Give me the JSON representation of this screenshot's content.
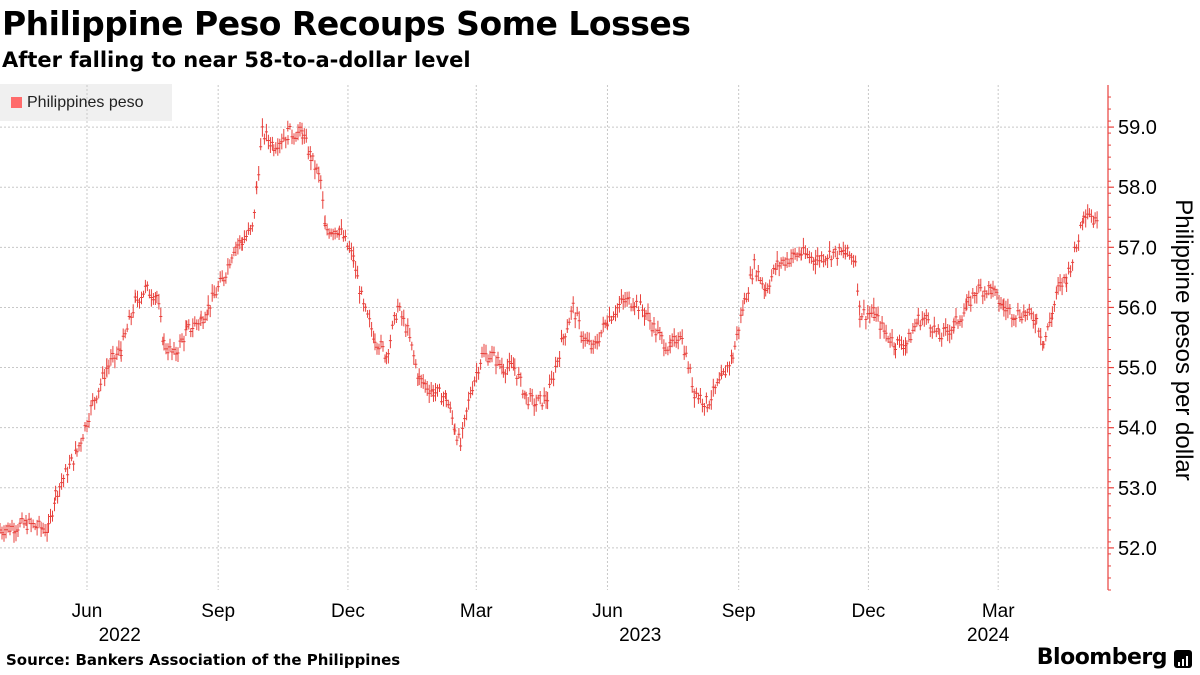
{
  "title": "Philippine Peso Recoups Some Losses",
  "subtitle": "After falling to near 58-to-a-dollar level",
  "source": "Source: Bankers Association of the Philippines",
  "brand": "Bloomberg",
  "brand_icon": "bloomberg-terminal-icon",
  "colors": {
    "series": "#e8413c",
    "legend": "#ff6b6b",
    "grid": "#c8c8c8",
    "axis": "#e8413c"
  },
  "chart_data": {
    "type": "line",
    "style": "ohlc-ticks",
    "ylabel": "Philippine pesos per dollar",
    "ylim": [
      51.3,
      59.7
    ],
    "yticks": [
      52.0,
      53.0,
      54.0,
      55.0,
      56.0,
      57.0,
      58.0,
      59.0
    ],
    "ytick_labels": [
      "52.0",
      "53.0",
      "54.0",
      "55.0",
      "56.0",
      "57.0",
      "58.0",
      "59.0"
    ],
    "y_axis_side": "right",
    "legend_position": "top-left",
    "grid": true,
    "x_start": "2022-04-01",
    "x_end": "2024-05-10",
    "x_month_ticks": [
      {
        "date": "2022-06-01",
        "label": "Jun"
      },
      {
        "date": "2022-09-01",
        "label": "Sep"
      },
      {
        "date": "2022-12-01",
        "label": "Dec"
      },
      {
        "date": "2023-03-01",
        "label": "Mar"
      },
      {
        "date": "2023-06-01",
        "label": "Jun"
      },
      {
        "date": "2023-09-01",
        "label": "Sep"
      },
      {
        "date": "2023-12-01",
        "label": "Dec"
      },
      {
        "date": "2024-03-01",
        "label": "Mar"
      }
    ],
    "x_year_labels": [
      {
        "date": "2022-07-15",
        "label": "2022"
      },
      {
        "date": "2023-07-15",
        "label": "2023"
      },
      {
        "date": "2024-03-15",
        "label": "2024"
      }
    ],
    "x_gridlines": [
      "2022-06-01",
      "2022-09-01",
      "2022-12-01",
      "2023-03-01",
      "2023-06-01",
      "2023-09-01",
      "2023-12-01",
      "2024-03-01"
    ],
    "series": [
      {
        "name": "Philippines peso",
        "points": [
          [
            "2022-04-01",
            52.3
          ],
          [
            "2022-04-20",
            52.4
          ],
          [
            "2022-05-05",
            52.3
          ],
          [
            "2022-05-10",
            52.9
          ],
          [
            "2022-05-25",
            53.6
          ],
          [
            "2022-06-05",
            54.4
          ],
          [
            "2022-06-15",
            55.0
          ],
          [
            "2022-06-25",
            55.3
          ],
          [
            "2022-07-05",
            56.1
          ],
          [
            "2022-07-12",
            56.3
          ],
          [
            "2022-07-20",
            56.2
          ],
          [
            "2022-07-25",
            55.4
          ],
          [
            "2022-08-01",
            55.2
          ],
          [
            "2022-08-10",
            55.6
          ],
          [
            "2022-08-20",
            55.8
          ],
          [
            "2022-08-25",
            56.0
          ],
          [
            "2022-09-05",
            56.5
          ],
          [
            "2022-09-12",
            57.0
          ],
          [
            "2022-09-18",
            57.1
          ],
          [
            "2022-09-25",
            57.3
          ],
          [
            "2022-09-28",
            58.0
          ],
          [
            "2022-10-02",
            58.9
          ],
          [
            "2022-10-10",
            58.7
          ],
          [
            "2022-10-20",
            58.9
          ],
          [
            "2022-10-30",
            58.9
          ],
          [
            "2022-11-05",
            58.5
          ],
          [
            "2022-11-12",
            58.1
          ],
          [
            "2022-11-15",
            57.3
          ],
          [
            "2022-11-25",
            57.3
          ],
          [
            "2022-12-05",
            56.8
          ],
          [
            "2022-12-12",
            56.0
          ],
          [
            "2022-12-20",
            55.5
          ],
          [
            "2022-12-28",
            55.2
          ],
          [
            "2023-01-05",
            56.0
          ],
          [
            "2023-01-12",
            55.6
          ],
          [
            "2023-01-20",
            54.8
          ],
          [
            "2023-01-30",
            54.6
          ],
          [
            "2023-02-08",
            54.5
          ],
          [
            "2023-02-14",
            54.0
          ],
          [
            "2023-02-18",
            53.7
          ],
          [
            "2023-02-25",
            54.6
          ],
          [
            "2023-03-05",
            55.2
          ],
          [
            "2023-03-12",
            55.2
          ],
          [
            "2023-03-20",
            55.0
          ],
          [
            "2023-03-28",
            55.0
          ],
          [
            "2023-04-05",
            54.5
          ],
          [
            "2023-04-12",
            54.4
          ],
          [
            "2023-04-20",
            54.5
          ],
          [
            "2023-05-01",
            55.5
          ],
          [
            "2023-05-08",
            56.0
          ],
          [
            "2023-05-15",
            55.5
          ],
          [
            "2023-05-22",
            55.3
          ],
          [
            "2023-06-01",
            55.8
          ],
          [
            "2023-06-12",
            56.1
          ],
          [
            "2023-06-20",
            56.1
          ],
          [
            "2023-06-28",
            55.9
          ],
          [
            "2023-07-05",
            55.6
          ],
          [
            "2023-07-15",
            55.3
          ],
          [
            "2023-07-22",
            55.6
          ],
          [
            "2023-08-01",
            54.6
          ],
          [
            "2023-08-10",
            54.4
          ],
          [
            "2023-08-20",
            54.8
          ],
          [
            "2023-08-28",
            55.2
          ],
          [
            "2023-09-05",
            56.1
          ],
          [
            "2023-09-12",
            56.7
          ],
          [
            "2023-09-20",
            56.3
          ],
          [
            "2023-09-28",
            56.7
          ],
          [
            "2023-10-05",
            56.8
          ],
          [
            "2023-10-15",
            56.9
          ],
          [
            "2023-10-25",
            56.8
          ],
          [
            "2023-11-05",
            56.9
          ],
          [
            "2023-11-15",
            56.9
          ],
          [
            "2023-11-22",
            56.8
          ],
          [
            "2023-11-25",
            55.9
          ],
          [
            "2023-12-05",
            55.9
          ],
          [
            "2023-12-12",
            55.6
          ],
          [
            "2023-12-20",
            55.4
          ],
          [
            "2023-12-28",
            55.4
          ],
          [
            "2024-01-05",
            55.8
          ],
          [
            "2024-01-12",
            55.8
          ],
          [
            "2024-01-20",
            55.5
          ],
          [
            "2024-01-30",
            55.7
          ],
          [
            "2024-02-08",
            56.0
          ],
          [
            "2024-02-15",
            56.3
          ],
          [
            "2024-02-25",
            56.3
          ],
          [
            "2024-03-05",
            56.0
          ],
          [
            "2024-03-12",
            55.9
          ],
          [
            "2024-03-20",
            55.9
          ],
          [
            "2024-03-28",
            55.8
          ],
          [
            "2024-04-02",
            55.4
          ],
          [
            "2024-04-08",
            55.9
          ],
          [
            "2024-04-12",
            56.3
          ],
          [
            "2024-04-18",
            56.5
          ],
          [
            "2024-04-25",
            57.0
          ],
          [
            "2024-04-30",
            57.6
          ],
          [
            "2024-05-04",
            57.6
          ],
          [
            "2024-05-08",
            57.4
          ],
          [
            "2024-05-10",
            57.6
          ]
        ]
      }
    ]
  }
}
